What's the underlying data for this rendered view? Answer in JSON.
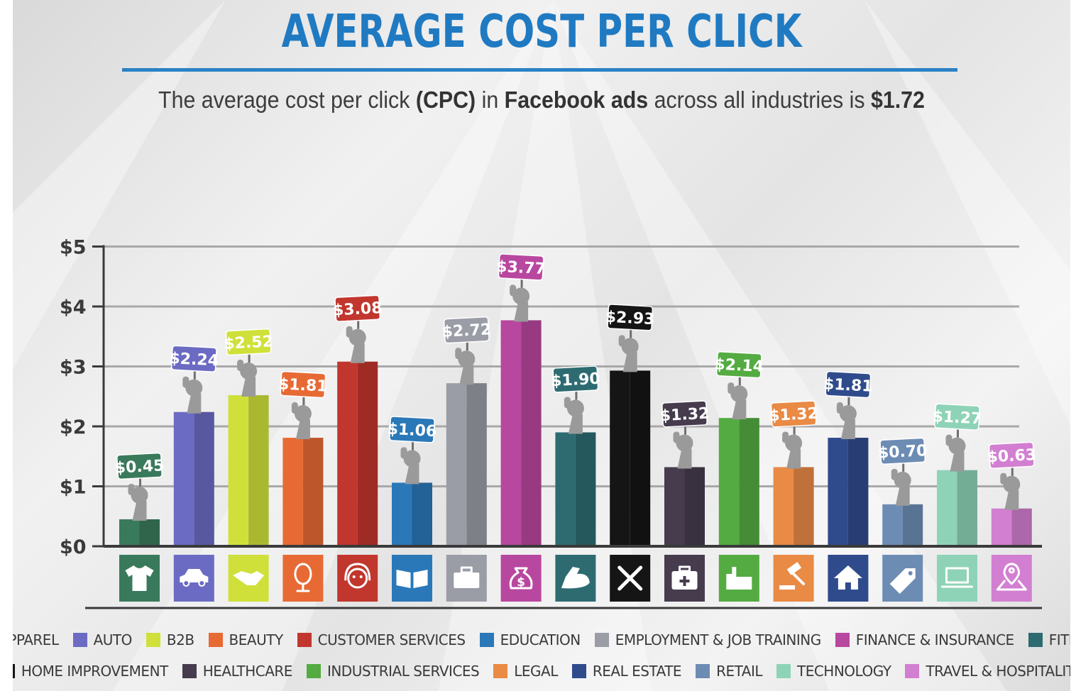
{
  "header": {
    "title": "AVERAGE COST PER CLICK",
    "subtitle_parts": [
      {
        "text": "The average cost per click ",
        "bold": false
      },
      {
        "text": "(CPC)",
        "bold": true
      },
      {
        "text": " in ",
        "bold": false
      },
      {
        "text": "Facebook ads",
        "bold": true
      },
      {
        "text": " across all industries is ",
        "bold": false
      },
      {
        "text": "$1.72",
        "bold": true
      }
    ]
  },
  "chart_data": {
    "type": "bar",
    "title": "AVERAGE COST PER CLICK",
    "ylim": [
      0,
      5
    ],
    "yticks": [
      {
        "value": 0,
        "label": "$0"
      },
      {
        "value": 1,
        "label": "$1"
      },
      {
        "value": 2,
        "label": "$2"
      },
      {
        "value": 3,
        "label": "$3"
      },
      {
        "value": 4,
        "label": "$4"
      },
      {
        "value": 5,
        "label": "$5"
      }
    ],
    "grid": true,
    "legend_placement": "bottom",
    "categories": [
      "APPAREL",
      "AUTO",
      "B2B",
      "BEAUTY",
      "CUSTOMER SERVICES",
      "EDUCATION",
      "EMPLOYMENT & JOB TRAINING",
      "FINANCE & INSURANCE",
      "FITNESS",
      "HOME IMPROVEMENT",
      "HEALTHCARE",
      "INDUSTRIAL SERVICES",
      "LEGAL",
      "REAL ESTATE",
      "RETAIL",
      "TECHNOLOGY",
      "TRAVEL & HOSPITALITY"
    ],
    "values": [
      0.45,
      2.24,
      2.52,
      1.81,
      3.08,
      1.06,
      2.72,
      3.77,
      1.9,
      2.93,
      1.32,
      2.14,
      1.32,
      1.81,
      0.7,
      1.27,
      0.63
    ],
    "value_labels": [
      "$0.45",
      "$2.24",
      "$2.52",
      "$1.81",
      "$3.08",
      "$1.06",
      "$2.72",
      "$3.77",
      "$1.90",
      "$2.93",
      "$1.32",
      "$2.14",
      "$1.32",
      "$1.81",
      "$0.70",
      "$1.27",
      "$0.63"
    ],
    "colors": [
      "#3a7a5c",
      "#6b6bc4",
      "#cfe03a",
      "#e76a35",
      "#c1362d",
      "#2a78b8",
      "#9a9ca6",
      "#b8479f",
      "#2d6b71",
      "#151515",
      "#463c4e",
      "#54ab42",
      "#e98a45",
      "#2f4b8c",
      "#6d8cb4",
      "#8ed3b7",
      "#d27fd1"
    ],
    "icons": [
      "tshirt-icon",
      "car-icon",
      "handshake-icon",
      "mirror-icon",
      "headset-agent-icon",
      "book-icon",
      "briefcase-icon",
      "money-bag-icon",
      "flexed-arm-icon",
      "tools-icon",
      "first-aid-kit-icon",
      "factory-icon",
      "gavel-icon",
      "house-icon",
      "price-tag-icon",
      "laptop-icon",
      "map-pin-icon"
    ]
  },
  "legend": {
    "rows": [
      [
        0,
        1,
        2,
        3,
        4,
        5,
        6,
        7,
        8
      ],
      [
        9,
        10,
        11,
        12,
        13,
        14,
        15,
        16
      ]
    ]
  }
}
